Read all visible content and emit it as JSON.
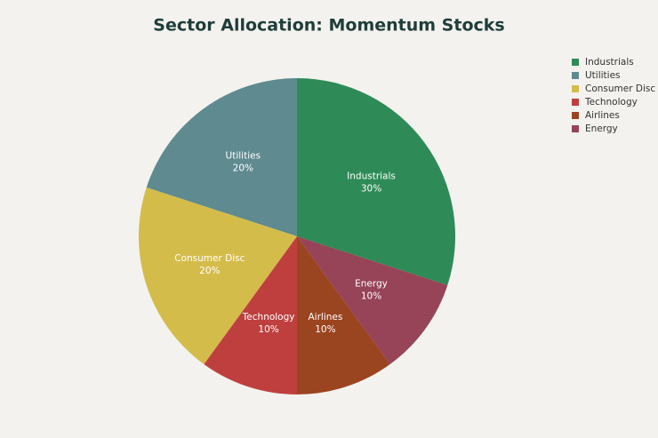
{
  "chart_data": {
    "type": "pie",
    "title": "Sector Allocation: Momentum Stocks",
    "categories": [
      "Industrials",
      "Utilities",
      "Consumer Disc",
      "Technology",
      "Airlines",
      "Energy"
    ],
    "values": [
      30,
      20,
      20,
      10,
      10,
      10
    ],
    "value_labels": [
      "30%",
      "20%",
      "20%",
      "10%",
      "10%",
      "10%"
    ],
    "colors": [
      "#2e8b57",
      "#5f8a8f",
      "#d4bc4a",
      "#bf3f3f",
      "#9b4420",
      "#974358"
    ],
    "legend": "top-right"
  }
}
